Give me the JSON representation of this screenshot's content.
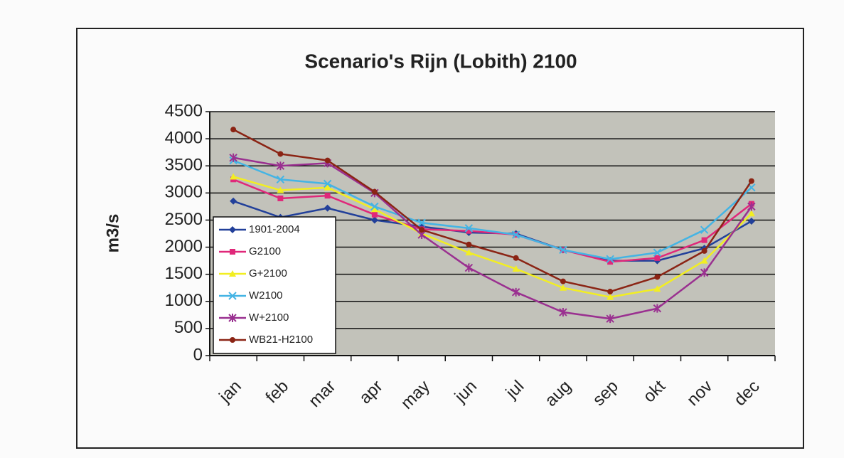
{
  "chart_data": {
    "type": "line",
    "title": "Scenario's Rijn (Lobith) 2100",
    "y_label": "m3/s",
    "categories": [
      "jan",
      "feb",
      "mar",
      "apr",
      "may",
      "jun",
      "jul",
      "aug",
      "sep",
      "okt",
      "nov",
      "dec"
    ],
    "series": [
      {
        "name": "1901-2004",
        "color": "#22409a",
        "marker": "diamond",
        "values": [
          2850,
          2550,
          2720,
          2500,
          2380,
          2270,
          2250,
          1950,
          1750,
          1750,
          1980,
          2480
        ]
      },
      {
        "name": "G2100",
        "color": "#e0287a",
        "marker": "square",
        "values": [
          3250,
          2900,
          2950,
          2600,
          2330,
          2300,
          2230,
          1950,
          1730,
          1800,
          2130,
          2800
        ]
      },
      {
        "name": "G+2100",
        "color": "#f2ee22",
        "marker": "triangle",
        "values": [
          3300,
          3050,
          3100,
          2700,
          2250,
          1900,
          1600,
          1250,
          1080,
          1230,
          1750,
          2620
        ]
      },
      {
        "name": "W2100",
        "color": "#44b4e4",
        "marker": "x",
        "values": [
          3600,
          3250,
          3170,
          2750,
          2450,
          2350,
          2230,
          1950,
          1780,
          1900,
          2320,
          3100
        ]
      },
      {
        "name": "W+2100",
        "color": "#9a3090",
        "marker": "star",
        "values": [
          3650,
          3500,
          3550,
          3000,
          2230,
          1620,
          1170,
          800,
          680,
          870,
          1530,
          2750
        ]
      },
      {
        "name": "WB21-H2100",
        "color": "#8b2414",
        "marker": "circle",
        "values": [
          4170,
          3720,
          3600,
          3020,
          2320,
          2050,
          1800,
          1370,
          1180,
          1450,
          1930,
          3220
        ]
      }
    ],
    "ylim": [
      0,
      4500
    ],
    "yticks": [
      0,
      500,
      1000,
      1500,
      2000,
      2500,
      3000,
      3500,
      4000,
      4500
    ],
    "grid": true,
    "legend": "lower left"
  }
}
